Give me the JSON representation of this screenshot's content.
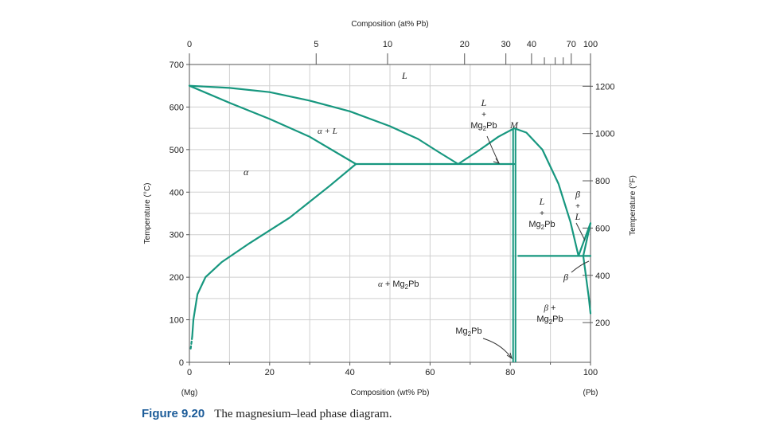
{
  "figure": {
    "number_label": "Figure 9.20",
    "caption": "The magnesium–lead phase diagram."
  },
  "axes": {
    "top_label": "Composition (at% Pb)",
    "top_ticks": [
      {
        "label": "0",
        "wt": 0
      },
      {
        "label": "5",
        "wt": 31.6
      },
      {
        "label": "10",
        "wt": 49.4
      },
      {
        "label": "20",
        "wt": 68.6
      },
      {
        "label": "30",
        "wt": 78.9
      },
      {
        "label": "40",
        "wt": 85.3
      },
      {
        "label": "70",
        "wt": 95.2
      },
      {
        "label": "100",
        "wt": 100
      }
    ],
    "top_minor_ticks_wt": [
      88.5,
      91.2,
      93.2
    ],
    "bottom_label": "Composition (wt% Pb)",
    "bottom_ticks": [
      "0",
      "20",
      "40",
      "60",
      "80",
      "100"
    ],
    "bottom_left_end": "(Mg)",
    "bottom_right_end": "(Pb)",
    "left_label": "Temperature (°C)",
    "left_ticks": [
      "0",
      "100",
      "200",
      "300",
      "400",
      "500",
      "600",
      "700"
    ],
    "right_label": "Temperature (°F)",
    "right_ticks": [
      {
        "label": "200",
        "F": 200
      },
      {
        "label": "400",
        "F": 400
      },
      {
        "label": "600",
        "F": 600
      },
      {
        "label": "800",
        "F": 800
      },
      {
        "label": "1000",
        "F": 1000
      },
      {
        "label": "1200",
        "F": 1200
      }
    ]
  },
  "regions": {
    "liquid": "L",
    "alpha": "α",
    "alpha_plus_l": "α + L",
    "l_plus_mg2pb_top": [
      "L",
      "+",
      "Mg₂Pb"
    ],
    "m_point": "M",
    "l_plus_mg2pb_right": [
      "L",
      "+",
      "Mg₂Pb"
    ],
    "beta_plus_l": [
      "β",
      "+",
      "L"
    ],
    "beta": "β",
    "alpha_plus_mg2pb": "α + Mg₂Pb",
    "beta_plus_mg2pb": [
      "β +",
      "Mg₂Pb"
    ],
    "mg2pb": "Mg₂Pb"
  },
  "colors": {
    "phase_line": "#17977f",
    "grid": "#cfcfcf",
    "axis": "#555555",
    "figure_label": "#1c5c99"
  },
  "chart_data": {
    "type": "phase-diagram",
    "x_unit": "wt% Pb",
    "y_unit": "°C",
    "xlim": [
      0,
      100
    ],
    "ylim": [
      0,
      700
    ],
    "grid": true,
    "key_points": {
      "mg_melting": [
        0,
        650
      ],
      "eutectic_1": [
        67,
        466
      ],
      "alpha_max_solubility": [
        41.5,
        466
      ],
      "mg2pb_composition_wt": 81,
      "mg2pb_melting_M": [
        81,
        550
      ],
      "eutectic_2": [
        97,
        250
      ],
      "pb_melting": [
        100,
        327
      ]
    },
    "boundaries": [
      {
        "name": "liquidus-alpha",
        "points": [
          [
            0,
            650
          ],
          [
            10,
            645
          ],
          [
            20,
            635
          ],
          [
            30,
            615
          ],
          [
            40,
            590
          ],
          [
            50,
            555
          ],
          [
            57,
            525
          ],
          [
            62,
            495
          ],
          [
            67,
            466
          ]
        ]
      },
      {
        "name": "solidus-alpha",
        "points": [
          [
            0,
            650
          ],
          [
            10,
            610
          ],
          [
            20,
            572
          ],
          [
            30,
            530
          ],
          [
            41.5,
            466
          ]
        ]
      },
      {
        "name": "solvus-alpha",
        "points": [
          [
            41.5,
            466
          ],
          [
            35,
            415
          ],
          [
            25,
            340
          ],
          [
            15,
            280
          ],
          [
            8,
            235
          ],
          [
            4,
            200
          ],
          [
            2,
            160
          ],
          [
            1,
            100
          ],
          [
            0.7,
            60
          ]
        ]
      },
      {
        "name": "solvus-alpha-dashed",
        "points": [
          [
            0.7,
            60
          ],
          [
            0.3,
            30
          ]
        ]
      },
      {
        "name": "eutectic-isotherm-1",
        "points": [
          [
            41.5,
            466
          ],
          [
            81,
            466
          ]
        ]
      },
      {
        "name": "liquidus-mg2pb-left",
        "points": [
          [
            67,
            466
          ],
          [
            72,
            497
          ],
          [
            77,
            530
          ],
          [
            81,
            550
          ]
        ]
      },
      {
        "name": "liquidus-mg2pb-right",
        "points": [
          [
            81,
            550
          ],
          [
            84,
            540
          ],
          [
            88,
            500
          ],
          [
            92,
            420
          ],
          [
            95,
            330
          ],
          [
            97,
            250
          ]
        ]
      },
      {
        "name": "eutectic-isotherm-2",
        "points": [
          [
            82,
            250
          ],
          [
            100,
            250
          ]
        ]
      },
      {
        "name": "liquidus-beta",
        "points": [
          [
            97,
            250
          ],
          [
            100,
            327
          ]
        ]
      },
      {
        "name": "solidus-beta",
        "points": [
          [
            98.2,
            250
          ],
          [
            100,
            327
          ]
        ]
      },
      {
        "name": "solvus-beta",
        "points": [
          [
            98.2,
            250
          ],
          [
            99.6,
            150
          ],
          [
            100,
            115
          ]
        ]
      }
    ]
  }
}
